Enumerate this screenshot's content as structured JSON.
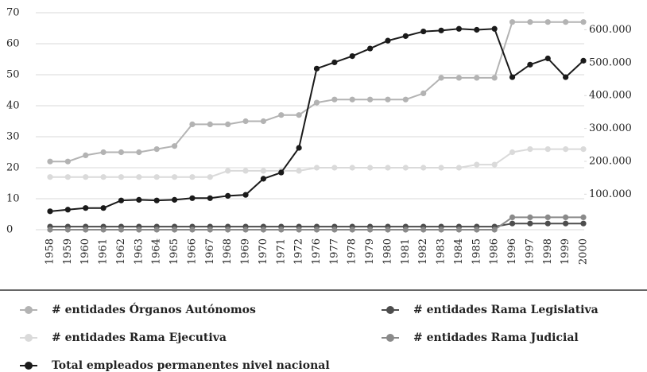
{
  "chart_data": {
    "type": "line",
    "categories": [
      "1958",
      "1959",
      "1960",
      "1961",
      "1962",
      "1963",
      "1964",
      "1965",
      "1966",
      "1967",
      "1968",
      "1969",
      "1970",
      "1971",
      "1972",
      "1976",
      "1977",
      "1978",
      "1979",
      "1980",
      "1981",
      "1982",
      "1983",
      "1984",
      "1985",
      "1986",
      "1996",
      "1997",
      "1998",
      "1999",
      "2000"
    ],
    "ylim": [
      0,
      70
    ],
    "yticks": [
      0,
      10,
      20,
      30,
      40,
      50,
      60,
      70
    ],
    "y2lim": [
      -8000,
      652000
    ],
    "y2ticks": [
      {
        "value": 100000,
        "label": "100.000"
      },
      {
        "value": 200000,
        "label": "200.000"
      },
      {
        "value": 300000,
        "label": "300.000"
      },
      {
        "value": 400000,
        "label": "400.000"
      },
      {
        "value": 500000,
        "label": "500.000"
      },
      {
        "value": 600000,
        "label": "600.000"
      }
    ],
    "grid": true,
    "series": [
      {
        "name": "# entidades Órganos Autónomos",
        "color": "#b3b3b3",
        "values": [
          22,
          22,
          24,
          25,
          25,
          25,
          26,
          27,
          34,
          34,
          34,
          35,
          35,
          37,
          37,
          41,
          42,
          42,
          42,
          42,
          42,
          44,
          49,
          49,
          49,
          49,
          67,
          67,
          67,
          67,
          67
        ]
      },
      {
        "name": "# entidades Rama Legislativa",
        "color": "#4d4d4d",
        "values": [
          1,
          1,
          1,
          1,
          1,
          1,
          1,
          1,
          1,
          1,
          1,
          1,
          1,
          1,
          1,
          1,
          1,
          1,
          1,
          1,
          1,
          1,
          1,
          1,
          1,
          1,
          2,
          2,
          2,
          2,
          2
        ]
      },
      {
        "name": "# entidades Rama Ejecutiva",
        "color": "#dadada",
        "values": [
          17,
          17,
          17,
          17,
          17,
          17,
          17,
          17,
          17,
          17,
          19,
          19,
          19,
          19,
          19,
          20,
          20,
          20,
          20,
          20,
          20,
          20,
          20,
          20,
          21,
          21,
          25,
          26,
          26,
          26,
          26
        ]
      },
      {
        "name": "# entidades Rama Judicial",
        "color": "#8a8a8a",
        "values": [
          0,
          0,
          0,
          0,
          0,
          0,
          0,
          0,
          0,
          0,
          0,
          0,
          0,
          0,
          0,
          0,
          0,
          0,
          0,
          0,
          0,
          0,
          0,
          0,
          0,
          0,
          4,
          4,
          4,
          4,
          4
        ]
      },
      {
        "name": "Total empleados permanentes nivel nacional",
        "color": "#1a1a1a",
        "axis": "y2",
        "values": [
          48000,
          53000,
          58000,
          58000,
          81000,
          83000,
          81000,
          83000,
          88000,
          88000,
          95000,
          98000,
          147000,
          166000,
          241000,
          482000,
          501000,
          520000,
          543000,
          567000,
          581000,
          595000,
          598000,
          603000,
          600000,
          603000,
          456000,
          494000,
          513000,
          456000,
          506000
        ]
      }
    ]
  }
}
